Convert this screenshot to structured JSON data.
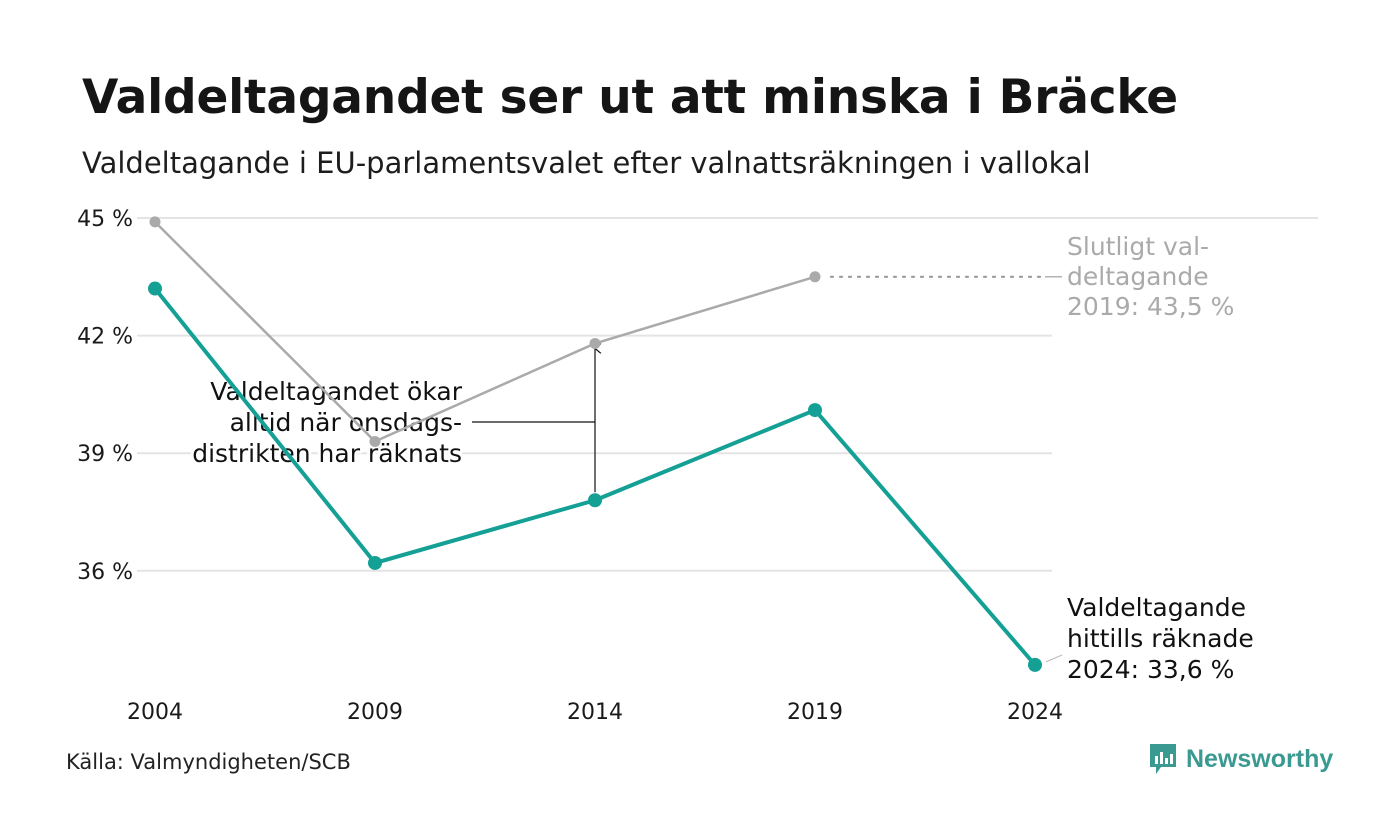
{
  "header": {
    "title": "Valdeltagandet ser ut att minska i Bräcke",
    "subtitle": "Valdeltagande i EU-parlamentsvalet efter valnattsräkningen i vallokal"
  },
  "footer": {
    "source": "Källa: Valmyndigheten/SCB",
    "brand": "Newsworthy"
  },
  "colors": {
    "accent": "#14a095",
    "final": "#aaaaaa",
    "grid": "#e4e4e4",
    "text": "#111111"
  },
  "chart_data": {
    "type": "line",
    "x": [
      2004,
      2009,
      2014,
      2019,
      2024
    ],
    "x_tick_labels": [
      "2004",
      "2009",
      "2014",
      "2019",
      "2024"
    ],
    "y_ticks": [
      36,
      39,
      42,
      45
    ],
    "y_tick_labels": [
      "36 %",
      "39 %",
      "42 %",
      "45 %"
    ],
    "ylim": [
      33.4,
      45.2
    ],
    "grid": true,
    "series": [
      {
        "key": "preliminary",
        "color": "#14a095",
        "values": [
          43.2,
          36.2,
          37.8,
          40.1,
          33.6
        ]
      },
      {
        "key": "final",
        "color": "#aaaaaa",
        "values": [
          44.9,
          39.3,
          41.8,
          43.5,
          null
        ]
      }
    ],
    "annotations": {
      "final_label": [
        "Slutligt val-",
        "deltagande",
        "2019: 43,5 %"
      ],
      "current_label": [
        "Valdeltagande",
        "hittills räknade",
        "2024: 33,6 %"
      ],
      "note": [
        "Valdeltagandet ökar",
        "alltid när onsdags-",
        "distrikten har räknats"
      ]
    }
  }
}
